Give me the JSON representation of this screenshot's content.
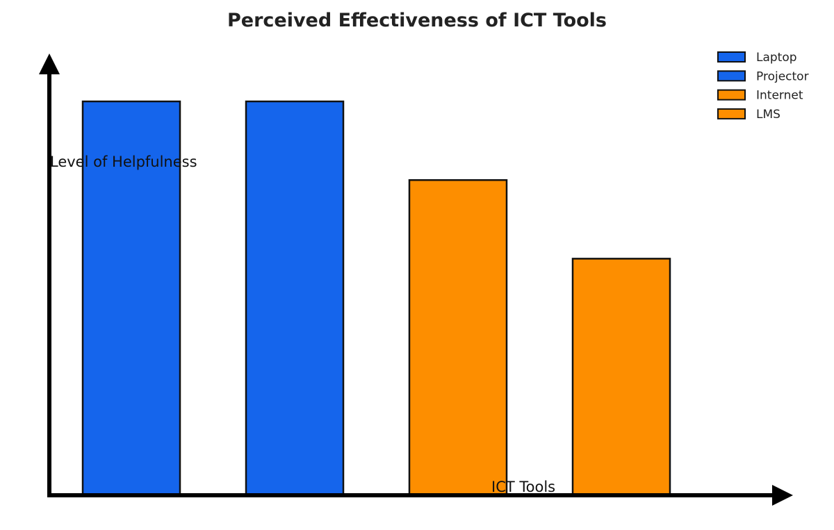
{
  "chart_data": {
    "type": "bar",
    "title": "Perceived Effectiveness of ICT Tools",
    "xlabel": "ICT Tools",
    "ylabel": "Level of Helpfulness",
    "categories": [
      "Laptop",
      "Projector",
      "Internet",
      "LMS"
    ],
    "values": [
      5,
      5,
      4,
      3
    ],
    "colors": [
      "#1565ec",
      "#1565ec",
      "#fd8e00",
      "#fd8e00"
    ],
    "ylim": [
      0,
      5
    ],
    "grid": false,
    "legend": {
      "position": "top-right",
      "entries": [
        {
          "label": "Laptop",
          "color": "#1565ec"
        },
        {
          "label": "Projector",
          "color": "#1565ec"
        },
        {
          "label": "Internet",
          "color": "#fd8e00"
        },
        {
          "label": "LMS",
          "color": "#fd8e00"
        }
      ]
    }
  }
}
